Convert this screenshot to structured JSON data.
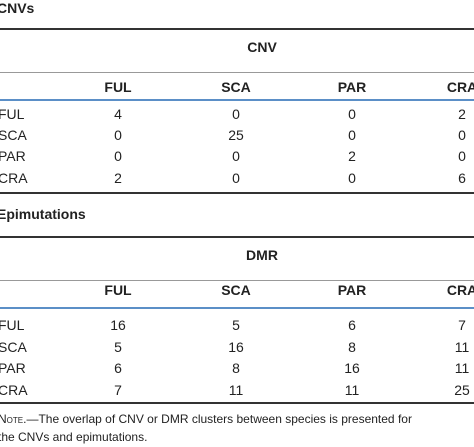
{
  "sections": [
    {
      "title": "CNVs",
      "group_header": "CNV",
      "columns": [
        "FUL",
        "SCA",
        "PAR",
        "CRA"
      ],
      "rows": [
        {
          "label": "FUL",
          "cells": [
            4,
            0,
            0,
            2
          ]
        },
        {
          "label": "SCA",
          "cells": [
            0,
            25,
            0,
            0
          ]
        },
        {
          "label": "PAR",
          "cells": [
            0,
            0,
            2,
            0
          ]
        },
        {
          "label": "CRA",
          "cells": [
            2,
            0,
            0,
            6
          ]
        }
      ]
    },
    {
      "title": "Epimutations",
      "group_header": "DMR",
      "columns": [
        "FUL",
        "SCA",
        "PAR",
        "CRA"
      ],
      "rows": [
        {
          "label": "FUL",
          "cells": [
            16,
            5,
            6,
            7
          ]
        },
        {
          "label": "SCA",
          "cells": [
            5,
            16,
            8,
            11
          ]
        },
        {
          "label": "PAR",
          "cells": [
            6,
            8,
            16,
            11
          ]
        },
        {
          "label": "CRA",
          "cells": [
            7,
            11,
            11,
            25
          ]
        }
      ]
    }
  ],
  "note": {
    "label": "Note.",
    "lines": [
      "—The overlap of CNV or DMR clusters between species is presented for",
      "the CNVs and epimutations."
    ]
  }
}
